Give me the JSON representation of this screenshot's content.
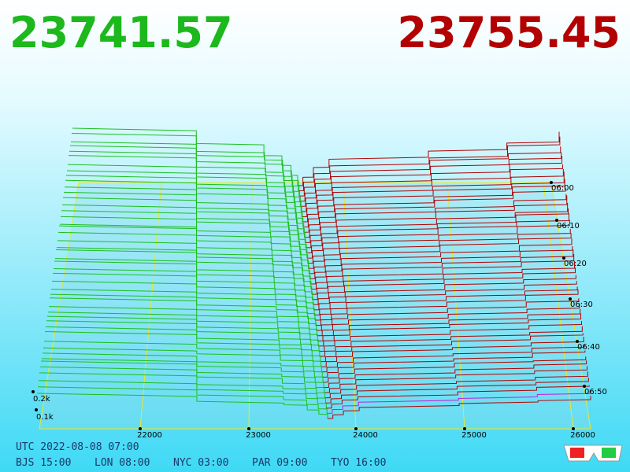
{
  "prices": {
    "bid": "23741.57",
    "ask": "23755.45"
  },
  "price_axis": [
    "22000",
    "23000",
    "24000",
    "25000",
    "26000"
  ],
  "time_axis": [
    "06:00",
    "06:10",
    "06:20",
    "06:30",
    "06:40",
    "06:50"
  ],
  "depth_axis": [
    "0.2k",
    "0.1k"
  ],
  "clock": {
    "utc": "UTC 2022-08-08 07:00",
    "zones": [
      "BJS 15:00",
      "LON 08:00",
      "NYC 03:00",
      "PAR 09:00",
      "TYO 16:00"
    ]
  }
}
